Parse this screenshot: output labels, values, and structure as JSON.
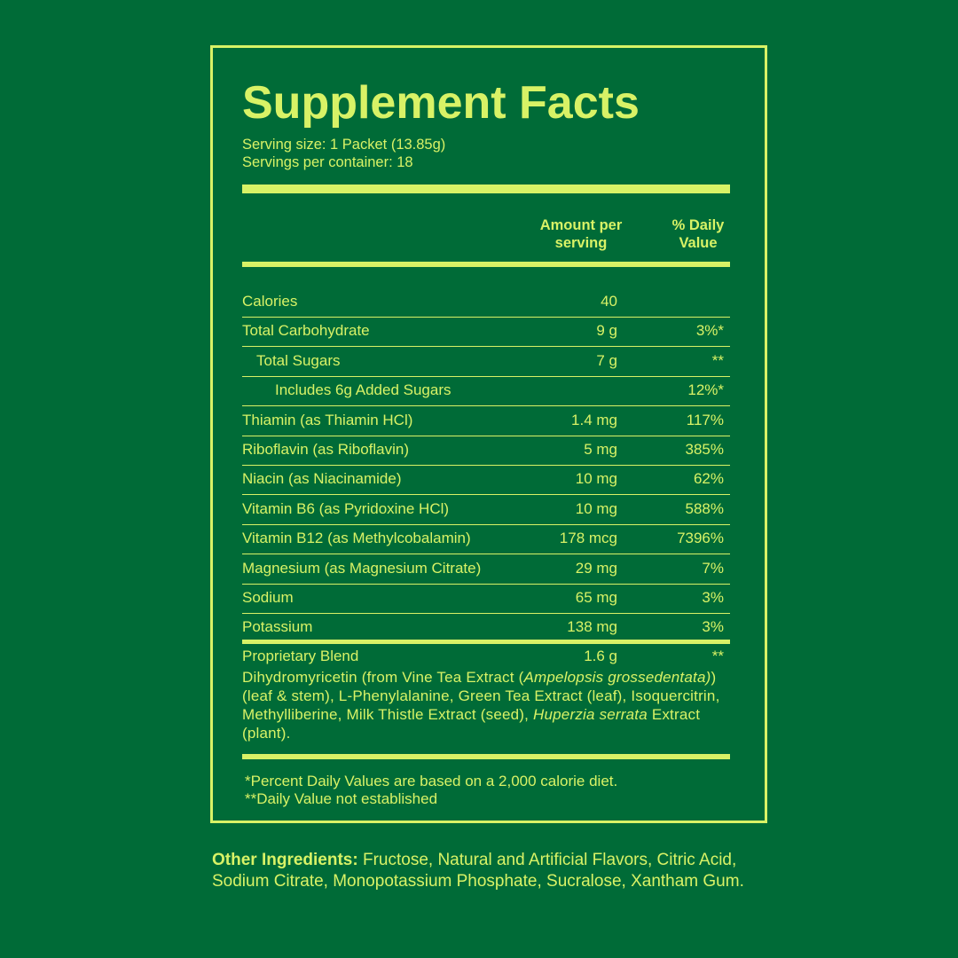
{
  "label": {
    "title": "Supplement Facts",
    "serving_size": "Serving size: 1 Packet (13.85g)",
    "servings_per_container": "Servings per container: 18",
    "header": {
      "amount": "Amount per serving",
      "daily_value": "% Daily Value"
    },
    "rows": [
      {
        "name": "Calories",
        "indent": 0,
        "amount": "40",
        "daily_value": null
      },
      {
        "name": "Total Carbohydrate",
        "indent": 0,
        "amount": "9 g",
        "daily_value": "3%*"
      },
      {
        "name": "Total Sugars",
        "indent": 1,
        "amount": "7 g",
        "daily_value": "**"
      },
      {
        "name": "Includes 6g Added Sugars",
        "indent": 2,
        "amount": null,
        "daily_value": "12%*"
      },
      {
        "name": "Thiamin (as Thiamin HCl)",
        "indent": 0,
        "amount": "1.4 mg",
        "daily_value": "117%"
      },
      {
        "name": "Riboflavin (as Riboflavin)",
        "indent": 0,
        "amount": "5 mg",
        "daily_value": "385%"
      },
      {
        "name": "Niacin (as Niacinamide)",
        "indent": 0,
        "amount": "10 mg",
        "daily_value": "62%"
      },
      {
        "name": "Vitamin B6 (as Pyridoxine HCl)",
        "indent": 0,
        "amount": "10 mg",
        "daily_value": "588%"
      },
      {
        "name": "Vitamin B12 (as Methylcobalamin)",
        "indent": 0,
        "amount": "178 mcg",
        "daily_value": "7396%"
      },
      {
        "name": "Magnesium (as Magnesium Citrate)",
        "indent": 0,
        "amount": "29 mg",
        "daily_value": "7%"
      },
      {
        "name": "Sodium",
        "indent": 0,
        "amount": "65 mg",
        "daily_value": "3%"
      },
      {
        "name": "Potassium",
        "indent": 0,
        "amount": "138 mg",
        "daily_value": "3%"
      }
    ],
    "blend": {
      "name": "Proprietary Blend",
      "amount": "1.6 g",
      "daily_value": "**",
      "description": [
        {
          "text": "Dihydromyricetin (from Vine Tea Extract (",
          "italic": false
        },
        {
          "text": "Ampelopsis grossedentata)",
          "italic": true
        },
        {
          "text": ") (leaf & stem), L-Phenylalanine, Green Tea Extract (leaf), Isoquercitrin, Methylliberine, Milk Thistle Extract (seed), ",
          "italic": false
        },
        {
          "text": "Huperzia serrata",
          "italic": true
        },
        {
          "text": " Extract (plant).",
          "italic": false
        }
      ]
    },
    "footnotes": [
      "*Percent Daily Values are based on a 2,000 calorie diet.",
      "**Daily Value not established"
    ]
  },
  "other_ingredients": {
    "label": "Other Ingredients:",
    "text": "Fructose, Natural and Artificial Flavors, Citric Acid, Sodium Citrate, Monopotassium Phosphate, Sucralose, Xantham Gum."
  }
}
